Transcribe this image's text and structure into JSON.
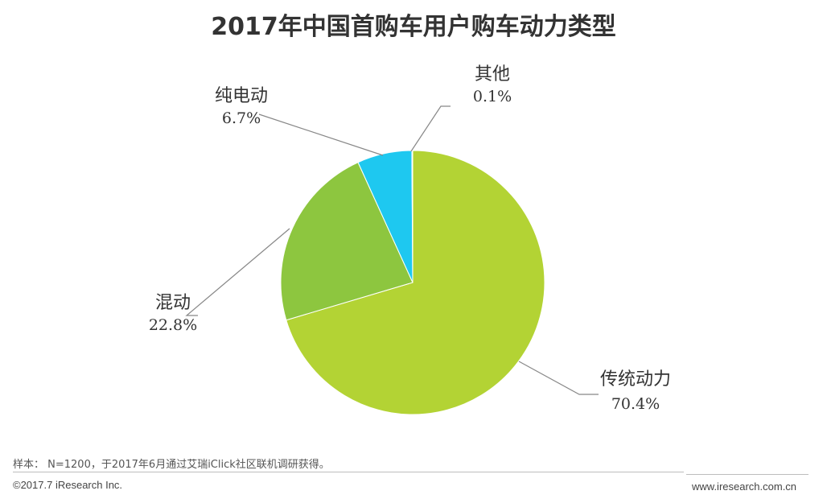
{
  "title": "2017年中国首购车用户购车动力类型",
  "chart_data": {
    "type": "pie",
    "title": "2017年中国首购车用户购车动力类型",
    "slices": [
      {
        "label": "传统动力",
        "value": 70.4,
        "display": "70.4%",
        "color": "#b3d334"
      },
      {
        "label": "混动",
        "value": 22.8,
        "display": "22.8%",
        "color": "#8dc63f"
      },
      {
        "label": "纯电动",
        "value": 6.7,
        "display": "6.7%",
        "color": "#1ec8f0"
      },
      {
        "label": "其他",
        "value": 0.1,
        "display": "0.1%",
        "color": "#666666"
      }
    ]
  },
  "footer": {
    "note": "样本： N=1200，于2017年6月通过艾瑞iClick社区联机调研获得。",
    "copyright": "©2017.7 iResearch Inc.",
    "site": "www.iresearch.com.cn"
  }
}
